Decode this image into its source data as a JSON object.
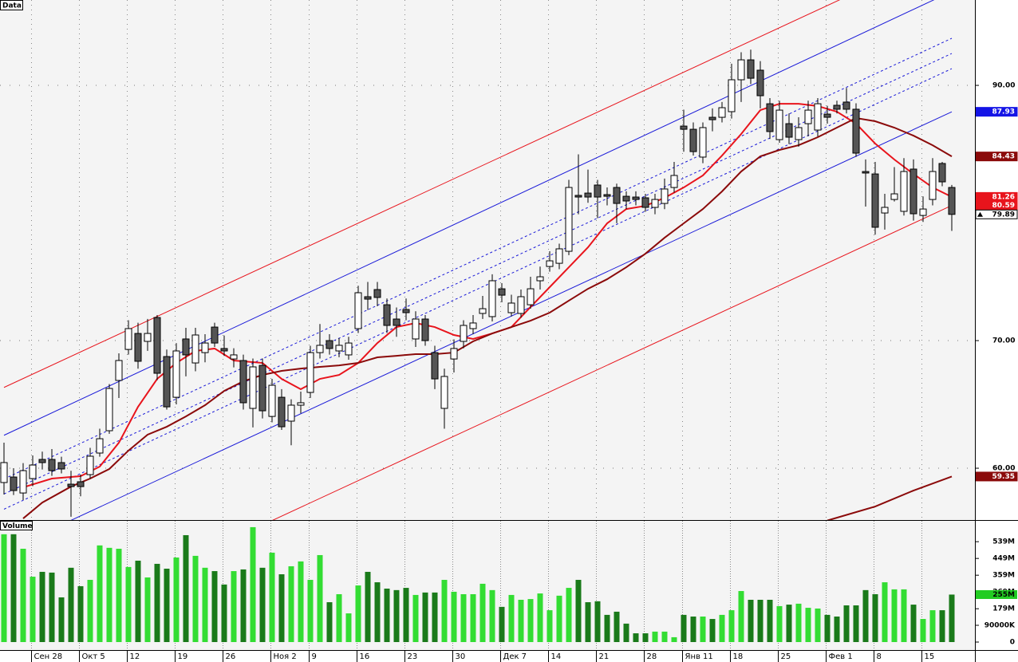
{
  "chart_data": [
    {
      "type": "candlestick",
      "title": "Data",
      "ylim": [
        55.94,
        96.69
      ],
      "yticks": [
        {
          "value": 90,
          "label": "90.00"
        },
        {
          "value": 70,
          "label": "70.00"
        },
        {
          "value": 60,
          "label": "60.00"
        }
      ],
      "grid": true,
      "up_color": "#ffffff",
      "down_color": "#555555",
      "open": [
        58.88,
        59.31,
        58.06,
        59.19,
        60.69,
        60.69,
        60.44,
        58.75,
        58.94,
        59.5,
        61.19,
        62.94,
        66.88,
        69.31,
        70.56,
        69.94,
        71.81,
        68.75,
        65.56,
        70.13,
        68.25,
        69.06,
        71.06,
        69.38,
        68.56,
        68.44,
        64.69,
        68.06,
        64.06,
        65.56,
        63.69,
        64.94,
        65.94,
        69.06,
        70.0,
        69.19,
        68.88,
        70.94,
        73.44,
        74.0,
        72.81,
        71.69,
        72.44,
        70.13,
        71.69,
        69.06,
        64.69,
        68.56,
        69.94,
        70.94,
        72.13,
        71.88,
        74.06,
        72.19,
        72.13,
        72.81,
        74.69,
        75.81,
        76.06,
        77.0,
        81.38,
        81.56,
        82.19,
        81.44,
        82.0,
        81.31,
        81.25,
        81.19,
        80.44,
        80.75,
        82.0,
        86.81,
        86.56,
        84.38,
        87.5,
        87.5,
        87.94,
        90.44,
        92.0,
        91.19,
        88.56,
        85.75,
        87.0,
        85.75,
        87.0,
        86.5,
        87.75,
        88.44,
        88.69,
        88.13,
        83.25,
        83.06,
        80.0,
        81.06,
        80.13,
        83.44,
        79.81,
        81.06,
        83.88,
        82.0
      ],
      "high": [
        62.0,
        60.0,
        60.4,
        61.0,
        61.3,
        61.5,
        60.9,
        59.8,
        59.5,
        61.6,
        63.1,
        66.6,
        69.0,
        71.6,
        71.4,
        71.7,
        72.0,
        69.3,
        69.8,
        71.0,
        71.0,
        70.5,
        71.4,
        70.4,
        69.4,
        68.9,
        68.6,
        68.6,
        67.0,
        66.2,
        65.4,
        66.0,
        69.6,
        71.3,
        70.5,
        70.2,
        70.3,
        74.3,
        74.6,
        74.6,
        73.3,
        72.6,
        73.3,
        72.3,
        72.0,
        69.6,
        67.8,
        70.1,
        71.6,
        72.0,
        73.5,
        75.2,
        74.5,
        73.6,
        74.0,
        75.0,
        75.8,
        77.0,
        77.6,
        82.6,
        84.6,
        83.4,
        82.6,
        82.0,
        82.3,
        81.7,
        81.7,
        81.5,
        81.5,
        82.7,
        84.0,
        88.1,
        87.1,
        87.1,
        88.2,
        88.7,
        91.7,
        92.6,
        92.8,
        91.9,
        89.0,
        88.8,
        87.8,
        87.5,
        88.8,
        89.0,
        88.4,
        88.8,
        89.8,
        88.6,
        84.2,
        84.0,
        81.5,
        83.6,
        84.3,
        84.2,
        81.3,
        84.3,
        84.0,
        82.2
      ],
      "low": [
        57.94,
        57.9,
        57.5,
        58.6,
        59.9,
        59.4,
        59.6,
        56.2,
        57.8,
        59.2,
        60.9,
        62.7,
        65.5,
        68.9,
        67.8,
        69.2,
        66.9,
        64.6,
        65.0,
        67.2,
        67.6,
        68.3,
        69.5,
        68.8,
        67.9,
        64.6,
        63.2,
        63.9,
        63.6,
        63.0,
        61.8,
        64.3,
        65.5,
        68.6,
        68.9,
        68.7,
        68.5,
        70.6,
        72.4,
        72.7,
        70.6,
        70.3,
        71.6,
        69.5,
        69.6,
        66.2,
        63.1,
        67.5,
        69.4,
        70.5,
        71.7,
        71.5,
        73.0,
        71.9,
        71.8,
        72.5,
        74.0,
        75.4,
        75.6,
        76.7,
        79.9,
        80.8,
        79.6,
        80.6,
        79.2,
        80.3,
        80.6,
        80.1,
        79.9,
        80.3,
        81.6,
        84.8,
        84.5,
        83.9,
        86.4,
        87.1,
        87.4,
        88.7,
        90.1,
        88.2,
        85.8,
        85.5,
        85.4,
        85.2,
        86.0,
        86.0,
        87.0,
        87.8,
        87.8,
        84.4,
        80.5,
        78.3,
        78.7,
        80.9,
        79.8,
        79.4,
        79.3,
        80.6,
        82.1,
        78.6
      ],
      "close": [
        60.44,
        58.25,
        59.81,
        60.25,
        60.44,
        59.81,
        59.94,
        58.56,
        58.56,
        60.94,
        62.31,
        66.25,
        68.44,
        70.94,
        68.38,
        70.56,
        67.44,
        64.81,
        69.19,
        68.88,
        70.44,
        69.81,
        69.81,
        69.19,
        68.88,
        65.13,
        67.94,
        64.5,
        66.5,
        63.25,
        64.94,
        65.13,
        69.06,
        69.63,
        69.38,
        69.63,
        69.81,
        73.75,
        73.25,
        73.38,
        71.19,
        71.19,
        72.19,
        71.69,
        70.0,
        67.0,
        67.19,
        69.38,
        71.19,
        71.38,
        72.5,
        74.69,
        73.56,
        72.94,
        73.44,
        74.06,
        75.0,
        76.25,
        77.19,
        82.0,
        81.25,
        81.25,
        81.25,
        81.31,
        80.75,
        80.94,
        81.06,
        80.44,
        81.06,
        81.88,
        82.94,
        86.56,
        84.81,
        86.69,
        87.31,
        88.25,
        90.44,
        92.0,
        90.56,
        89.19,
        86.38,
        88.06,
        85.94,
        86.69,
        88.06,
        88.56,
        87.5,
        88.13,
        88.13,
        84.69,
        83.13,
        78.88,
        80.44,
        81.5,
        83.25,
        79.94,
        80.31,
        83.25,
        82.44,
        79.89
      ],
      "overlays": [
        {
          "color": "#e8141c",
          "dash": false,
          "x": [
            0,
            99
          ],
          "values": [
            66.33,
            100.78
          ]
        },
        {
          "color": "#1a1ad8",
          "dash": false,
          "x": [
            0,
            99
          ],
          "values": [
            62.58,
            97.36
          ]
        },
        {
          "color": "#1a1ad8",
          "dash": true,
          "x": [
            0,
            99
          ],
          "values": [
            59.16,
            93.69
          ]
        },
        {
          "color": "#1a1ad8",
          "dash": true,
          "x": [
            0,
            99
          ],
          "values": [
            57.98,
            92.5
          ]
        },
        {
          "color": "#1a1ad8",
          "dash": true,
          "x": [
            0,
            99
          ],
          "values": [
            56.79,
            91.31
          ]
        },
        {
          "color": "#1a1ad8",
          "dash": false,
          "x": [
            0,
            99
          ],
          "values": [
            53.48,
            87.93
          ]
        },
        {
          "color": "#e8141c",
          "dash": false,
          "x": [
            0,
            99
          ],
          "values": [
            46.16,
            80.59
          ]
        },
        {
          "color": "#e8141c",
          "dash": false,
          "x": [
            2,
            5,
            8,
            10,
            12,
            14,
            16,
            18,
            20,
            22,
            24,
            27,
            29,
            31,
            33,
            35,
            37,
            39,
            41,
            43,
            45,
            47,
            49,
            51,
            53,
            55,
            57,
            59,
            61,
            63,
            65,
            67,
            69,
            71,
            73,
            75,
            77,
            79,
            81,
            83,
            85,
            87,
            89,
            91,
            93,
            95,
            97,
            99
          ],
          "values": [
            58.5,
            59.19,
            59.38,
            60.13,
            62.0,
            64.81,
            67.0,
            68.25,
            69.19,
            69.38,
            68.44,
            68.25,
            67.0,
            66.19,
            67.0,
            67.31,
            68.25,
            69.81,
            71.06,
            71.38,
            71.06,
            70.44,
            70.13,
            70.56,
            71.06,
            72.63,
            74.19,
            75.75,
            77.31,
            79.19,
            80.31,
            80.56,
            81.19,
            82.0,
            82.94,
            84.5,
            86.19,
            88.06,
            88.56,
            88.56,
            88.38,
            87.94,
            87.0,
            85.44,
            84.19,
            83.06,
            82.0,
            81.26
          ]
        },
        {
          "color": "#8b0a0a",
          "dash": false,
          "x": [
            2,
            4,
            7,
            9,
            11,
            13,
            15,
            17,
            19,
            21,
            23,
            25,
            27,
            29,
            31,
            33,
            35,
            37,
            39,
            41,
            43,
            45,
            47,
            49,
            51,
            53,
            55,
            57,
            59,
            61,
            63,
            65,
            67,
            69,
            71,
            73,
            75,
            77,
            79,
            81,
            83,
            85,
            87,
            89,
            91,
            93,
            95,
            97,
            99
          ],
          "values": [
            56.06,
            57.31,
            58.56,
            59.19,
            59.94,
            61.38,
            62.63,
            63.25,
            64.06,
            64.94,
            66.06,
            66.81,
            67.31,
            67.63,
            67.81,
            67.94,
            68.06,
            68.25,
            68.69,
            68.81,
            68.94,
            68.94,
            69.06,
            69.94,
            70.56,
            71.06,
            71.56,
            72.19,
            73.13,
            74.06,
            74.81,
            75.75,
            76.81,
            78.06,
            79.19,
            80.31,
            81.69,
            83.25,
            84.44,
            84.94,
            85.31,
            85.94,
            86.69,
            87.44,
            87.19,
            86.69,
            86.06,
            85.31,
            84.43
          ]
        },
        {
          "color": "#8b0a0a",
          "dash": false,
          "x": [
            86,
            91,
            95,
            99
          ],
          "values": [
            55.9,
            57.0,
            58.25,
            59.35
          ]
        }
      ],
      "markers": [
        {
          "value": 87.93,
          "color": "#1414e6",
          "text_color": "#ffffff"
        },
        {
          "value": 84.43,
          "color": "#8b0a0a",
          "text_color": "#ffffff"
        },
        {
          "value": 81.26,
          "color": "#e8141c",
          "text_color": "#ffffff"
        },
        {
          "value": 80.59,
          "color": "#e8141c",
          "text_color": "#ffffff"
        },
        {
          "value": 79.89,
          "color": "#ffffff",
          "text_color": "#000000"
        },
        {
          "value": 59.35,
          "color": "#8b0a0a",
          "text_color": "#ffffff"
        }
      ]
    },
    {
      "type": "bar",
      "title": "Volume",
      "ylim": [
        0,
        651
      ],
      "yticks": [
        {
          "value": 539,
          "label": "539M"
        },
        {
          "value": 449,
          "label": "449M"
        },
        {
          "value": 359,
          "label": "359M"
        },
        {
          "value": 269,
          "label": "269M"
        },
        {
          "value": 179,
          "label": "179M"
        },
        {
          "value": 90,
          "label": "90000K"
        },
        0
      ],
      "up_color": "#33dd33",
      "down_color": "#1a7a1a",
      "categories": [
        null,
        null,
        null,
        "Сен 28",
        null,
        null,
        null,
        null,
        "Окт 5",
        null,
        null,
        null,
        null,
        "12",
        null,
        null,
        null,
        null,
        "19",
        null,
        null,
        null,
        null,
        "26",
        null,
        null,
        null,
        null,
        "Ноя 2",
        null,
        null,
        null,
        "9",
        null,
        null,
        null,
        null,
        "16",
        null,
        null,
        null,
        null,
        "23",
        null,
        null,
        null,
        null,
        "30",
        null,
        null,
        null,
        null,
        "Дек 7",
        null,
        null,
        null,
        null,
        "14",
        null,
        null,
        null,
        null,
        "21",
        null,
        null,
        null,
        null,
        "28",
        null,
        null,
        null,
        "Янв 11",
        null,
        null,
        null,
        null,
        "18",
        null,
        null,
        null,
        null,
        "25",
        null,
        null,
        null,
        null,
        "Фев 1",
        null,
        null,
        null,
        null,
        "8",
        null,
        null,
        null,
        null,
        "15",
        null,
        null,
        null
      ],
      "values": [
        579,
        579,
        501,
        351,
        377,
        373,
        240,
        399,
        300,
        334,
        519,
        506,
        501,
        403,
        437,
        347,
        420,
        394,
        454,
        574,
        463,
        399,
        381,
        309,
        381,
        390,
        617,
        399,
        480,
        364,
        407,
        433,
        334,
        467,
        214,
        257,
        154,
        304,
        377,
        321,
        287,
        279,
        291,
        253,
        266,
        266,
        334,
        270,
        257,
        257,
        313,
        279,
        189,
        253,
        227,
        231,
        261,
        171,
        249,
        291,
        334,
        214,
        219,
        146,
        163,
        99,
        47,
        47,
        56,
        56,
        26,
        146,
        137,
        137,
        124,
        146,
        171,
        274,
        227,
        227,
        227,
        193,
        201,
        206,
        184,
        180,
        146,
        137,
        197,
        197,
        279,
        257,
        321,
        283,
        283,
        201,
        124,
        171,
        171,
        255
      ],
      "markers": [
        {
          "value": 255,
          "label": "255M",
          "color": "#22cc22",
          "text_color": "#000000"
        }
      ]
    }
  ]
}
